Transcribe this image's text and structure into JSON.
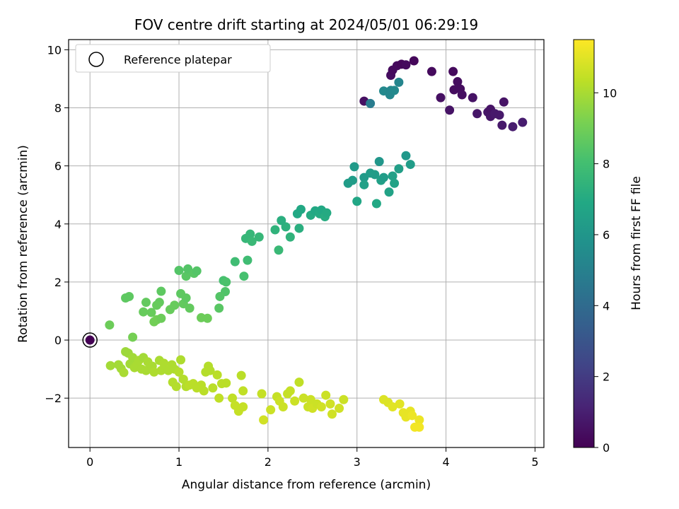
{
  "chart_data": {
    "type": "scatter",
    "title": "FOV centre drift starting at 2024/05/01 06:29:19",
    "xlabel": "Angular distance from reference (arcmin)",
    "ylabel": "Rotation from reference (arcmin)",
    "xlim": [
      -0.24,
      5.1
    ],
    "ylim": [
      -3.7,
      10.35
    ],
    "xticks": [
      0,
      1,
      2,
      3,
      4,
      5
    ],
    "yticks": [
      -2,
      0,
      2,
      4,
      6,
      8,
      10
    ],
    "xtick_labels": [
      "0",
      "1",
      "2",
      "3",
      "4",
      "5"
    ],
    "ytick_labels": [
      "−2",
      "0",
      "2",
      "4",
      "6",
      "8",
      "10"
    ],
    "grid": true,
    "legend": {
      "placement": "top-left",
      "label": "Reference platepar"
    },
    "reference_point": {
      "x": 0,
      "y": 0
    },
    "colorbar": {
      "label": "Hours from first FF file",
      "colormap": "viridis",
      "range": [
        0,
        11.5
      ],
      "ticks": [
        0,
        2,
        4,
        6,
        8,
        10
      ],
      "tick_labels": [
        "0",
        "2",
        "4",
        "6",
        "8",
        "10"
      ]
    },
    "points": [
      [
        0,
        0,
        0
      ],
      [
        3.08,
        8.23,
        0.5
      ],
      [
        3.38,
        9.12,
        0.4
      ],
      [
        3.4,
        9.3,
        0.3
      ],
      [
        3.45,
        9.45,
        0.3
      ],
      [
        3.5,
        9.5,
        0.2
      ],
      [
        3.55,
        9.48,
        0.3
      ],
      [
        3.64,
        9.62,
        0.2
      ],
      [
        3.84,
        9.25,
        0.3
      ],
      [
        3.94,
        8.35,
        0.5
      ],
      [
        4.04,
        7.92,
        0.6
      ],
      [
        4.08,
        9.25,
        0.3
      ],
      [
        4.09,
        8.62,
        0.4
      ],
      [
        4.13,
        8.9,
        0.4
      ],
      [
        4.16,
        8.65,
        0.4
      ],
      [
        4.18,
        8.45,
        0.5
      ],
      [
        4.3,
        8.35,
        0.6
      ],
      [
        4.35,
        7.8,
        0.7
      ],
      [
        4.47,
        7.85,
        0.7
      ],
      [
        4.5,
        7.95,
        0.6
      ],
      [
        4.5,
        7.7,
        0.7
      ],
      [
        4.55,
        7.8,
        0.8
      ],
      [
        4.6,
        7.75,
        0.8
      ],
      [
        4.63,
        7.4,
        0.8
      ],
      [
        4.65,
        8.2,
        0.6
      ],
      [
        4.75,
        7.35,
        0.9
      ],
      [
        4.86,
        7.5,
        0.9
      ],
      [
        3.15,
        8.15,
        4.8
      ],
      [
        3.3,
        8.58,
        5.4
      ],
      [
        3.37,
        8.45,
        5.3
      ],
      [
        3.38,
        8.6,
        5.3
      ],
      [
        3.42,
        8.6,
        5.4
      ],
      [
        3.47,
        8.88,
        5.2
      ],
      [
        2.9,
        5.4,
        6.3
      ],
      [
        2.95,
        5.5,
        6.3
      ],
      [
        2.97,
        5.97,
        6.2
      ],
      [
        3.0,
        4.78,
        6.8
      ],
      [
        3.08,
        5.6,
        6.2
      ],
      [
        3.08,
        5.35,
        6.5
      ],
      [
        3.15,
        5.75,
        6.3
      ],
      [
        3.2,
        5.7,
        6.3
      ],
      [
        3.22,
        4.7,
        6.9
      ],
      [
        3.25,
        6.15,
        6.0
      ],
      [
        3.27,
        5.5,
        6.5
      ],
      [
        3.3,
        5.6,
        6.3
      ],
      [
        3.36,
        5.1,
        6.6
      ],
      [
        3.4,
        5.65,
        6.5
      ],
      [
        3.42,
        5.4,
        6.6
      ],
      [
        3.47,
        5.9,
        6.4
      ],
      [
        3.55,
        6.35,
        6.1
      ],
      [
        3.6,
        6.05,
        6.3
      ],
      [
        2.33,
        4.35,
        6.9
      ],
      [
        2.37,
        4.5,
        6.9
      ],
      [
        2.48,
        4.3,
        7.0
      ],
      [
        2.53,
        4.45,
        6.9
      ],
      [
        2.58,
        4.35,
        7.0
      ],
      [
        2.6,
        4.48,
        6.9
      ],
      [
        2.64,
        4.25,
        7.1
      ],
      [
        2.66,
        4.38,
        7.0
      ],
      [
        2.35,
        3.85,
        7.2
      ],
      [
        2.25,
        3.55,
        7.4
      ],
      [
        2.2,
        3.9,
        7.3
      ],
      [
        2.15,
        4.12,
        7.2
      ],
      [
        2.08,
        3.8,
        7.4
      ],
      [
        2.12,
        3.1,
        7.7
      ],
      [
        1.75,
        3.5,
        7.6
      ],
      [
        1.8,
        3.65,
        7.6
      ],
      [
        1.82,
        3.4,
        7.7
      ],
      [
        1.9,
        3.55,
        7.6
      ],
      [
        1.77,
        2.75,
        7.9
      ],
      [
        1.73,
        2.2,
        8.1
      ],
      [
        1.63,
        2.7,
        7.9
      ],
      [
        1.5,
        2.05,
        8.1
      ],
      [
        1.52,
        1.67,
        8.3
      ],
      [
        1.53,
        2.0,
        8.2
      ],
      [
        1.46,
        1.5,
        8.4
      ],
      [
        1.45,
        1.1,
        8.5
      ],
      [
        0.22,
        0.52,
        8.9
      ],
      [
        0.48,
        0.1,
        9.1
      ],
      [
        0.4,
        1.45,
        8.6
      ],
      [
        0.44,
        1.5,
        8.6
      ],
      [
        0.6,
        0.97,
        8.8
      ],
      [
        0.63,
        1.3,
        8.7
      ],
      [
        0.69,
        0.95,
        8.8
      ],
      [
        0.72,
        0.63,
        9.0
      ],
      [
        0.75,
        0.7,
        9.0
      ],
      [
        0.78,
        1.3,
        8.7
      ],
      [
        0.8,
        1.68,
        8.6
      ],
      [
        0.8,
        0.75,
        8.9
      ],
      [
        0.75,
        1.2,
        8.8
      ],
      [
        0.9,
        1.05,
        8.8
      ],
      [
        0.95,
        1.2,
        8.8
      ],
      [
        1.0,
        2.4,
        8.4
      ],
      [
        1.02,
        1.6,
        8.6
      ],
      [
        1.05,
        1.25,
        8.7
      ],
      [
        1.08,
        2.2,
        8.5
      ],
      [
        1.1,
        2.45,
        8.4
      ],
      [
        1.08,
        1.45,
        8.6
      ],
      [
        1.12,
        1.1,
        8.7
      ],
      [
        1.17,
        2.3,
        8.5
      ],
      [
        1.2,
        2.38,
        8.4
      ],
      [
        1.25,
        0.77,
        8.9
      ],
      [
        1.32,
        0.75,
        8.9
      ],
      [
        0.35,
        -0.98,
        9.9
      ],
      [
        0.38,
        -1.12,
        10.0
      ],
      [
        0.4,
        -0.4,
        9.8
      ],
      [
        0.43,
        -0.45,
        9.8
      ],
      [
        0.45,
        -0.82,
        9.9
      ],
      [
        0.48,
        -0.6,
        9.9
      ],
      [
        0.5,
        -0.95,
        10.0
      ],
      [
        0.53,
        -0.85,
        10.0
      ],
      [
        0.55,
        -0.7,
        10.0
      ],
      [
        0.58,
        -1.0,
        10.0
      ],
      [
        0.6,
        -0.6,
        9.9
      ],
      [
        0.63,
        -1.05,
        10.0
      ],
      [
        0.65,
        -0.75,
        10.0
      ],
      [
        0.7,
        -0.9,
        10.0
      ],
      [
        0.72,
        -1.1,
        10.1
      ],
      [
        0.78,
        -0.7,
        10.0
      ],
      [
        0.8,
        -1.05,
        10.1
      ],
      [
        0.83,
        -0.8,
        10.1
      ],
      [
        0.88,
        -1.05,
        10.1
      ],
      [
        0.92,
        -0.85,
        10.1
      ],
      [
        0.93,
        -1.45,
        10.2
      ],
      [
        0.95,
        -1.0,
        10.1
      ],
      [
        0.97,
        -1.6,
        10.2
      ],
      [
        1.0,
        -1.1,
        10.2
      ],
      [
        1.02,
        -0.68,
        10.1
      ],
      [
        1.05,
        -1.35,
        10.2
      ],
      [
        1.08,
        -1.6,
        10.2
      ],
      [
        1.12,
        -1.55,
        10.3
      ],
      [
        1.16,
        -1.5,
        10.3
      ],
      [
        1.2,
        -1.65,
        10.3
      ],
      [
        1.25,
        -1.55,
        10.3
      ],
      [
        1.28,
        -1.75,
        10.3
      ],
      [
        1.3,
        -1.1,
        10.2
      ],
      [
        1.33,
        -0.9,
        10.2
      ],
      [
        1.35,
        -1.05,
        10.2
      ],
      [
        1.38,
        -1.65,
        10.3
      ],
      [
        1.43,
        -1.2,
        10.3
      ],
      [
        1.45,
        -2.0,
        10.4
      ],
      [
        1.48,
        -1.5,
        10.3
      ],
      [
        1.53,
        -1.48,
        10.3
      ],
      [
        1.6,
        -2.0,
        10.4
      ],
      [
        1.63,
        -2.25,
        10.5
      ],
      [
        1.67,
        -2.45,
        10.5
      ],
      [
        1.7,
        -1.22,
        10.3
      ],
      [
        1.72,
        -2.3,
        10.5
      ],
      [
        1.72,
        -1.75,
        10.4
      ],
      [
        0.23,
        -0.88,
        9.9
      ],
      [
        0.32,
        -0.85,
        9.9
      ],
      [
        1.93,
        -1.85,
        10.5
      ],
      [
        1.95,
        -2.75,
        10.7
      ],
      [
        2.03,
        -2.4,
        10.6
      ],
      [
        2.1,
        -1.95,
        10.5
      ],
      [
        2.13,
        -2.1,
        10.6
      ],
      [
        2.17,
        -2.3,
        10.6
      ],
      [
        2.22,
        -1.85,
        10.5
      ],
      [
        2.25,
        -1.75,
        10.5
      ],
      [
        2.3,
        -2.1,
        10.6
      ],
      [
        2.35,
        -1.45,
        10.4
      ],
      [
        2.4,
        -2.0,
        10.6
      ],
      [
        2.45,
        -2.3,
        10.6
      ],
      [
        2.48,
        -2.05,
        10.6
      ],
      [
        2.5,
        -2.35,
        10.7
      ],
      [
        2.55,
        -2.2,
        10.6
      ],
      [
        2.6,
        -2.3,
        10.7
      ],
      [
        2.65,
        -1.9,
        10.6
      ],
      [
        2.7,
        -2.2,
        10.7
      ],
      [
        2.72,
        -2.55,
        10.7
      ],
      [
        2.8,
        -2.35,
        10.7
      ],
      [
        2.85,
        -2.05,
        10.6
      ],
      [
        3.3,
        -2.05,
        10.9
      ],
      [
        3.35,
        -2.15,
        10.9
      ],
      [
        3.4,
        -2.3,
        11.0
      ],
      [
        3.48,
        -2.2,
        11.0
      ],
      [
        3.52,
        -2.5,
        11.1
      ],
      [
        3.55,
        -2.65,
        11.1
      ],
      [
        3.6,
        -2.45,
        11.1
      ],
      [
        3.62,
        -2.6,
        11.2
      ],
      [
        3.65,
        -3.0,
        11.3
      ],
      [
        3.7,
        -2.75,
        11.2
      ],
      [
        3.7,
        -3.0,
        11.3
      ]
    ]
  }
}
